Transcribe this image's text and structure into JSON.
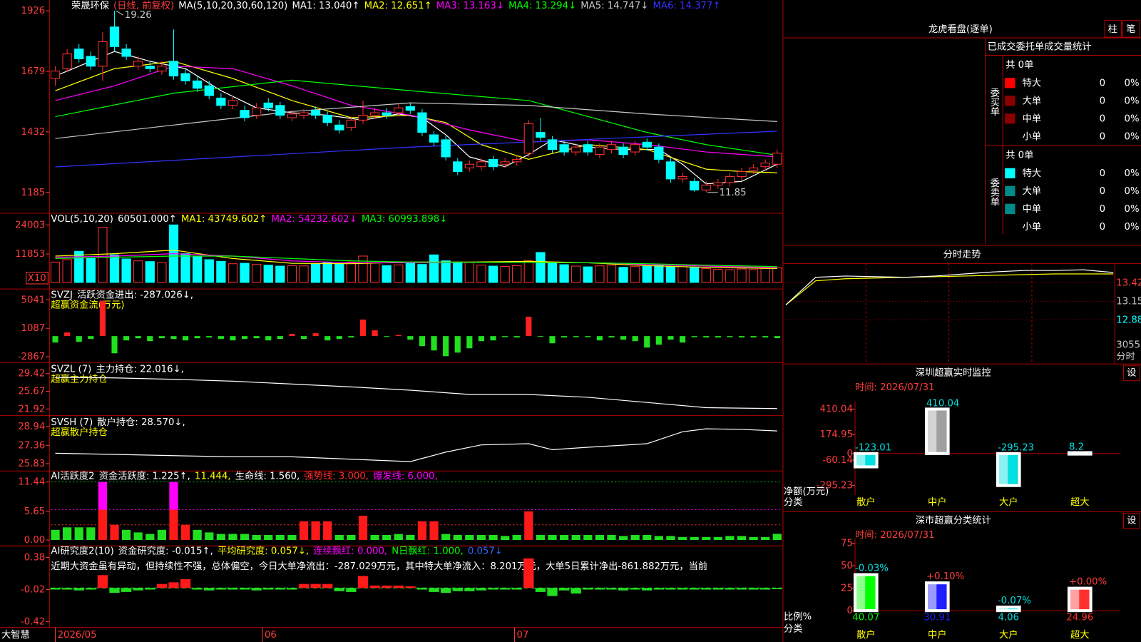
{
  "price": {
    "title": "荣晟环保",
    "period": "(日线, 前复权)",
    "ma_label": "MA(5,10,20,30,60,120)",
    "ylim": [
      1100,
      1970
    ],
    "yticks": [
      1926,
      1679,
      1432,
      1185
    ],
    "up_color": "#ff3232",
    "down_color": "#00ffff",
    "max_label": "19.26",
    "min_label": "11.85",
    "open": [
      1650,
      1690,
      1770,
      1740,
      1700,
      1860,
      1770,
      1700,
      1700,
      1680,
      1720,
      1670,
      1640,
      1620,
      1570,
      1540,
      1520,
      1500,
      1550,
      1540,
      1490,
      1500,
      1520,
      1500,
      1460,
      1450,
      1480,
      1500,
      1510,
      1510,
      1535,
      1510,
      1420,
      1400,
      1310,
      1285,
      1290,
      1320,
      1300,
      1310,
      1345,
      1430,
      1400,
      1380,
      1350,
      1380,
      1340,
      1360,
      1370,
      1350,
      1390,
      1370,
      1310,
      1240,
      1230,
      1195,
      1215,
      1225,
      1250,
      1275,
      1290,
      1300
    ],
    "high": [
      1700,
      1770,
      1790,
      1760,
      1840,
      1926,
      1790,
      1740,
      1720,
      1720,
      1850,
      1690,
      1660,
      1640,
      1590,
      1580,
      1540,
      1550,
      1570,
      1555,
      1520,
      1525,
      1535,
      1515,
      1480,
      1495,
      1560,
      1530,
      1530,
      1550,
      1550,
      1525,
      1435,
      1415,
      1325,
      1315,
      1325,
      1335,
      1325,
      1335,
      1480,
      1490,
      1415,
      1395,
      1385,
      1395,
      1385,
      1395,
      1385,
      1395,
      1405,
      1385,
      1325,
      1265,
      1245,
      1230,
      1240,
      1265,
      1285,
      1300,
      1320,
      1360
    ],
    "low": [
      1620,
      1675,
      1715,
      1685,
      1640,
      1760,
      1725,
      1685,
      1675,
      1665,
      1645,
      1625,
      1595,
      1565,
      1525,
      1525,
      1475,
      1485,
      1515,
      1485,
      1475,
      1485,
      1485,
      1455,
      1425,
      1435,
      1465,
      1485,
      1485,
      1495,
      1505,
      1415,
      1375,
      1315,
      1255,
      1270,
      1275,
      1275,
      1285,
      1295,
      1330,
      1395,
      1345,
      1335,
      1335,
      1335,
      1325,
      1345,
      1325,
      1335,
      1355,
      1305,
      1225,
      1225,
      1188,
      1185,
      1200,
      1210,
      1235,
      1260,
      1275,
      1285
    ],
    "close": [
      1680,
      1750,
      1730,
      1700,
      1800,
      1780,
      1740,
      1720,
      1690,
      1700,
      1660,
      1640,
      1610,
      1580,
      1540,
      1560,
      1490,
      1530,
      1530,
      1500,
      1505,
      1510,
      1500,
      1470,
      1440,
      1480,
      1500,
      1510,
      1500,
      1530,
      1520,
      1430,
      1390,
      1330,
      1270,
      1300,
      1310,
      1290,
      1310,
      1320,
      1465,
      1410,
      1360,
      1350,
      1370,
      1350,
      1370,
      1380,
      1340,
      1380,
      1370,
      1320,
      1240,
      1250,
      1195,
      1215,
      1225,
      1250,
      1270,
      1285,
      1305,
      1345
    ],
    "ma": [
      {
        "name": "MA1: 13.040↑",
        "color": "#ffffff",
        "x": [
          0,
          3,
          5,
          8,
          11,
          14,
          17,
          20,
          23,
          26,
          29,
          31,
          33,
          35,
          38,
          40,
          42,
          45,
          48,
          51,
          53,
          55,
          58,
          61
        ],
        "values": [
          1660,
          1720,
          1760,
          1720,
          1690,
          1600,
          1530,
          1510,
          1500,
          1480,
          1505,
          1490,
          1420,
          1330,
          1290,
          1340,
          1400,
          1370,
          1360,
          1360,
          1300,
          1220,
          1230,
          1300
        ]
      },
      {
        "name": "MA2: 12.651↑",
        "color": "#ffff00",
        "x": [
          0,
          5,
          10,
          15,
          20,
          25,
          30,
          33,
          36,
          40,
          45,
          50,
          55,
          58,
          61
        ],
        "values": [
          1600,
          1690,
          1720,
          1650,
          1560,
          1490,
          1500,
          1470,
          1380,
          1320,
          1380,
          1360,
          1280,
          1270,
          1265
        ]
      },
      {
        "name": "MA3: 13.163↓",
        "color": "#ff00ff",
        "x": [
          0,
          5,
          10,
          15,
          20,
          25,
          30,
          35,
          40,
          45,
          50,
          55,
          61
        ],
        "values": [
          1560,
          1620,
          1700,
          1690,
          1620,
          1540,
          1500,
          1440,
          1390,
          1400,
          1380,
          1350,
          1330
        ]
      },
      {
        "name": "MA4: 13.294↓",
        "color": "#00ff00",
        "x": [
          0,
          10,
          20,
          30,
          40,
          50,
          55,
          61
        ],
        "values": [
          1494,
          1590,
          1643,
          1600,
          1560,
          1430,
          1380,
          1337
        ]
      },
      {
        "name": "MA5: 14.747↓",
        "color": "#c8c8c8",
        "x": [
          0,
          10,
          20,
          30,
          40,
          50,
          61
        ],
        "values": [
          1405,
          1460,
          1515,
          1550,
          1540,
          1505,
          1474
        ]
      },
      {
        "name": "MA6: 14.377↑",
        "color": "#3333ff",
        "x": [
          0,
          30,
          61
        ],
        "values": [
          1289,
          1370,
          1435
        ]
      }
    ]
  },
  "volume": {
    "label": "VOL(5,10,20)",
    "current": "60501.000↑",
    "scale_label": "X10",
    "ylim": [
      0,
      27650
    ],
    "yticks": [
      24003,
      11853
    ],
    "values": [
      8500,
      9500,
      13000,
      10000,
      23000,
      11500,
      9800,
      9000,
      8700,
      8200,
      24000,
      12000,
      11000,
      9500,
      8800,
      7800,
      8000,
      7500,
      7200,
      6800,
      7000,
      6900,
      7600,
      8400,
      7800,
      8500,
      11000,
      8200,
      7000,
      7300,
      8000,
      7500,
      11500,
      9000,
      8500,
      8300,
      7200,
      6800,
      6700,
      7000,
      9200,
      12500,
      8000,
      7400,
      6800,
      6500,
      6900,
      7200,
      6300,
      6600,
      6800,
      7000,
      6700,
      7200,
      6300,
      5800,
      5500,
      5300,
      5600,
      5400,
      5800,
      6200
    ],
    "ma": [
      {
        "name": "MA1: 43749.602↑",
        "color": "#ffff00",
        "x": [
          0,
          5,
          10,
          15,
          20,
          25,
          30,
          35,
          40,
          45,
          50,
          55,
          61
        ],
        "values": [
          11000,
          12000,
          13500,
          10000,
          8000,
          7800,
          8500,
          8500,
          8800,
          8200,
          7000,
          6300,
          5800
        ]
      },
      {
        "name": "MA2: 54232.602↓",
        "color": "#ff00ff",
        "x": [
          0,
          5,
          10,
          15,
          20,
          25,
          30,
          35,
          40,
          45,
          50,
          55,
          61
        ],
        "values": [
          10500,
          11000,
          12000,
          11000,
          9000,
          8200,
          8200,
          8400,
          8300,
          8300,
          7500,
          6800,
          6200
        ]
      },
      {
        "name": "MA3: 60993.898↓",
        "color": "#00ff00",
        "x": [
          0,
          5,
          10,
          15,
          20,
          25,
          30,
          35,
          40,
          45,
          50,
          55,
          61
        ],
        "values": [
          10000,
          10500,
          11000,
          11000,
          10000,
          9000,
          8500,
          8400,
          8300,
          8200,
          7800,
          7200,
          6600
        ]
      }
    ]
  },
  "svzj": {
    "label": "SVZJ",
    "legend": "活跃资金进出: -287.026↓,",
    "subtitle": "超赢资金流(万元)",
    "ylim": [
      -3577,
      6258
    ],
    "yticks": [
      5041,
      1087,
      -2867
    ],
    "values": [
      -900,
      500,
      -800,
      -400,
      4900,
      -2400,
      -600,
      -300,
      -700,
      -300,
      -400,
      -600,
      -300,
      -200,
      -400,
      -600,
      -400,
      -300,
      -600,
      -400,
      300,
      -400,
      400,
      -600,
      -400,
      -200,
      2300,
      800,
      -100,
      150,
      -500,
      -1400,
      -2000,
      -2800,
      -2300,
      -1700,
      -700,
      -600,
      -150,
      -200,
      2700,
      -100,
      -1000,
      -200,
      -150,
      -150,
      -600,
      -200,
      -500,
      -700,
      -1600,
      -1200,
      -500,
      -900,
      -150,
      -200,
      -200,
      -150,
      -200,
      -200,
      -200,
      -287
    ]
  },
  "svzl": {
    "label": "SVZL (7)",
    "legend": "主力持仓: 22.016↓,",
    "subtitle": "超赢主力持仓",
    "ylim": [
      20.67,
      31.61
    ],
    "yticks": [
      29.42,
      25.67,
      21.92
    ],
    "x": [
      0,
      5,
      10,
      15,
      20,
      25,
      30,
      35,
      40,
      45,
      50,
      55,
      61
    ],
    "values": [
      28.6,
      28.5,
      28.2,
      27.8,
      27.2,
      26.6,
      25.9,
      25.0,
      25.0,
      24.4,
      23.3,
      22.2,
      22.016
    ]
  },
  "svsh": {
    "label": "SVSH (7)",
    "legend": "散户持仓: 28.570↓,",
    "subtitle": "超赢散户持仓",
    "ylim": [
      25.28,
      29.79
    ],
    "yticks": [
      28.94,
      27.36,
      25.83
    ],
    "x": [
      0,
      5,
      10,
      15,
      20,
      25,
      30,
      33,
      36,
      40,
      42,
      45,
      50,
      53,
      55,
      58,
      61
    ],
    "values": [
      26.7,
      26.6,
      26.5,
      26.4,
      26.4,
      26.2,
      26.0,
      26.8,
      27.4,
      27.5,
      27.0,
      27.2,
      27.5,
      28.5,
      28.75,
      28.7,
      28.57
    ]
  },
  "activity": {
    "label": "AI活跃度2",
    "legend": [
      {
        "text": "资金活跃度: 1.225↑,",
        "color": "#ffffff"
      },
      {
        "text": "11.444,",
        "color": "#ffff00"
      },
      {
        "text": "生命线: 1.560,",
        "color": "#ffffff"
      },
      {
        "text": "强势线: 3.000,",
        "color": "#ff3030"
      },
      {
        "text": "爆发线: 6.000,",
        "color": "#ff00ff"
      }
    ],
    "ylim": [
      -0.87,
      13.18
    ],
    "yticks": [
      11.44,
      5.65,
      {
        "value": 0,
        "label": "0.00"
      }
    ],
    "levels": [
      {
        "value": 11.444,
        "color": "#00c000"
      },
      {
        "value": 6,
        "color": "#ff00ff"
      },
      {
        "value": 3,
        "color": "#ff3030"
      }
    ],
    "strong": 3,
    "burst": 6,
    "values": [
      2,
      2.5,
      2.5,
      2.5,
      11.44,
      3,
      2,
      1.5,
      1.2,
      2,
      11.44,
      3,
      2,
      1.5,
      1.2,
      1.2,
      1.2,
      1,
      1,
      1,
      1,
      3.7,
      3.7,
      3.7,
      1,
      1,
      4.8,
      1,
      1,
      1.2,
      1,
      3.7,
      3.7,
      1.2,
      1,
      1,
      1,
      1,
      0.8,
      1,
      5.65,
      1,
      1,
      1,
      1,
      1,
      1,
      1,
      0.8,
      1,
      1,
      0.8,
      0.8,
      0.6,
      0.6,
      0.6,
      0.6,
      0.8,
      0.8,
      0.6,
      0.6,
      1.225
    ]
  },
  "research": {
    "label": "AI研究度2(10)",
    "legend": [
      {
        "text": "资金研究度: -0.015↑,",
        "color": "#ffffff"
      },
      {
        "text": "平均研究度: 0.057↓,",
        "color": "#ffff00"
      },
      {
        "text": "连续飘红: 0.000,",
        "color": "#ff00ff"
      },
      {
        "text": "N日飘红: 1.000,",
        "color": "#00ff00"
      },
      {
        "text": "0.057↓",
        "color": "#3366ff"
      }
    ],
    "note": "近期大资金虽有异动，但持续性不强，总体偏空，今日大单净流出：-287.029万元，其中特大单净流入：8.201万元，大单5日累计净出-861.882万元，当前",
    "ylim": [
      -0.493,
      0.507
    ],
    "yticks": [
      0.38,
      -0.02,
      -0.42
    ],
    "values": [
      -0.02,
      -0.02,
      -0.03,
      -0.02,
      0.16,
      -0.06,
      -0.05,
      -0.03,
      -0.02,
      0.05,
      0.07,
      0.11,
      -0.02,
      -0.03,
      -0.02,
      -0.02,
      -0.02,
      -0.03,
      -0.02,
      -0.02,
      -0.02,
      0.05,
      0.05,
      0.05,
      -0.04,
      -0.05,
      0.15,
      0.03,
      0.03,
      0.03,
      0.02,
      -0.02,
      -0.05,
      -0.06,
      -0.04,
      -0.04,
      -0.03,
      -0.02,
      -0.02,
      -0.02,
      0.37,
      -0.05,
      -0.1,
      -0.03,
      -0.07,
      -0.02,
      -0.02,
      -0.02,
      -0.03,
      -0.02,
      -0.03,
      -0.02,
      -0.02,
      -0.02,
      -0.02,
      -0.02,
      -0.02,
      -0.02,
      -0.02,
      -0.02,
      -0.02,
      -0.015
    ]
  },
  "footer": {
    "brand": "大智慧",
    "dates": [
      {
        "value": 0,
        "label": "2026/05"
      },
      {
        "value": 17.5,
        "label": "06"
      },
      {
        "value": 38.8,
        "label": "07"
      }
    ]
  },
  "dragon": {
    "title": "龙虎看盘(逐单)",
    "buttons": [
      "柱",
      "笔"
    ],
    "subtitle": "已成交委托单成交量统计",
    "groups": [
      {
        "label": "委买单",
        "total": "共 0单",
        "rows": [
          {
            "name": "特大",
            "count": 0,
            "ratio": "0%",
            "color": "#ff0000"
          },
          {
            "name": "大单",
            "count": 0,
            "ratio": "0%",
            "color": "#8b0000"
          },
          {
            "name": "中单",
            "count": 0,
            "ratio": "0%",
            "color": "#8b0000"
          },
          {
            "name": "小单",
            "count": 0,
            "ratio": "0%"
          }
        ]
      },
      {
        "label": "委卖单",
        "total": "共 0单",
        "rows": [
          {
            "name": "特大",
            "count": 0,
            "ratio": "0%",
            "color": "#00ffff"
          },
          {
            "name": "大单",
            "count": 0,
            "ratio": "0%",
            "color": "#008b8b"
          },
          {
            "name": "中单",
            "count": 0,
            "ratio": "0%",
            "color": "#008b8b"
          },
          {
            "name": "小单",
            "count": 0,
            "ratio": "0%"
          }
        ]
      }
    ]
  },
  "intraday": {
    "title": "分时走势",
    "ylim": [
      12.6,
      13.67
    ],
    "yticks": [
      {
        "value": 13.42,
        "label": "13.42",
        "color": "#ff3c3c"
      },
      {
        "value": 13.15,
        "label": "13.15",
        "color": "#c8c8c8"
      },
      {
        "value": 12.88,
        "label": "12.88",
        "color": "#00ffff"
      }
    ],
    "volume_tick": 3055,
    "volume_label": "分时",
    "price": [
      13.1,
      13.5,
      13.52,
      13.51,
      13.5,
      13.52,
      13.55,
      13.58,
      13.6,
      13.6,
      13.61,
      13.57
    ],
    "average": [
      13.1,
      13.45,
      13.48,
      13.49,
      13.5,
      13.51,
      13.52,
      13.53,
      13.54,
      13.55,
      13.55,
      13.55
    ]
  },
  "monitor": {
    "title": "深圳超赢实时监控",
    "button": "设",
    "time": "时间: 2026/07/31",
    "ylim": [
      -382,
      477
    ],
    "yticks": [
      410.04,
      174.95,
      0,
      -60.14,
      -295.23
    ],
    "y_label": "净额(万元)",
    "x_label": "分类",
    "categories": [
      "散户",
      "中户",
      "大户",
      "超大"
    ],
    "values": [
      -123.01,
      410.04,
      -295.23,
      8.2
    ],
    "colors": [
      "#00e0e0",
      "#a0a0a0",
      "#00e0e0",
      "#ff3030"
    ]
  },
  "stats": {
    "title": "深市超赢分类统计",
    "button": "设",
    "time": "时间: 2026/07/31",
    "ylim": [
      0,
      80
    ],
    "yticks": [
      75,
      50,
      25,
      0
    ],
    "y_label": "比例%",
    "x_label": "分类",
    "categories": [
      "散户",
      "中户",
      "大户",
      "超大"
    ],
    "values": [
      40.07,
      30.91,
      4.06,
      24.96
    ],
    "changes": [
      "-0.03%",
      "+0.10%",
      "-0.07%",
      "+0.00%"
    ],
    "colors": [
      "#00ff00",
      "#2020ff",
      "#00e0e0",
      "#ff3030"
    ]
  }
}
